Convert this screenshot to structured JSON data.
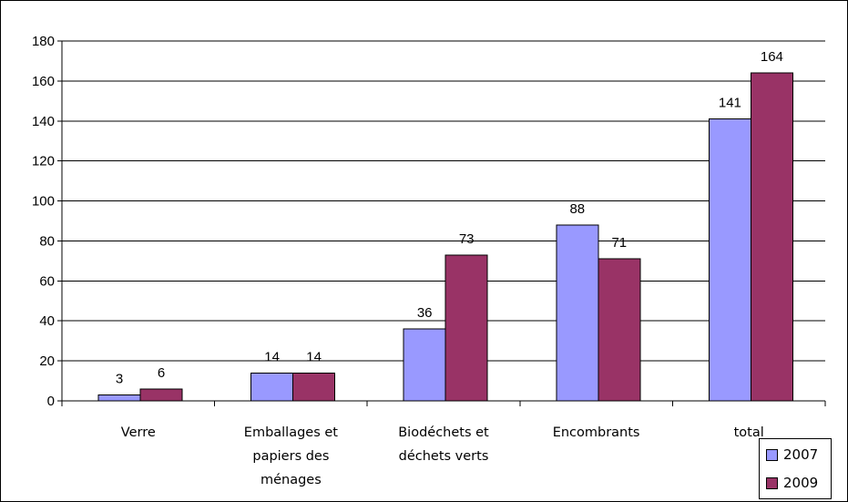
{
  "chart_data": {
    "type": "bar",
    "title": "",
    "xlabel": "",
    "ylabel": "",
    "ylim": [
      0,
      180
    ],
    "yticks": [
      0,
      20,
      40,
      60,
      80,
      100,
      120,
      140,
      160,
      180
    ],
    "grid": true,
    "legend_position": "bottom-right",
    "categories": [
      [
        "Verre"
      ],
      [
        "Emballages et",
        "papiers des",
        "ménages"
      ],
      [
        "Biodéchets et",
        "déchets verts"
      ],
      [
        "Encombrants"
      ],
      [
        "total"
      ]
    ],
    "series": [
      {
        "name": "2007",
        "color": "#9999ff",
        "values": [
          3,
          14,
          36,
          88,
          141
        ]
      },
      {
        "name": "2009",
        "color": "#993366",
        "values": [
          6,
          14,
          73,
          71,
          164
        ]
      }
    ]
  }
}
